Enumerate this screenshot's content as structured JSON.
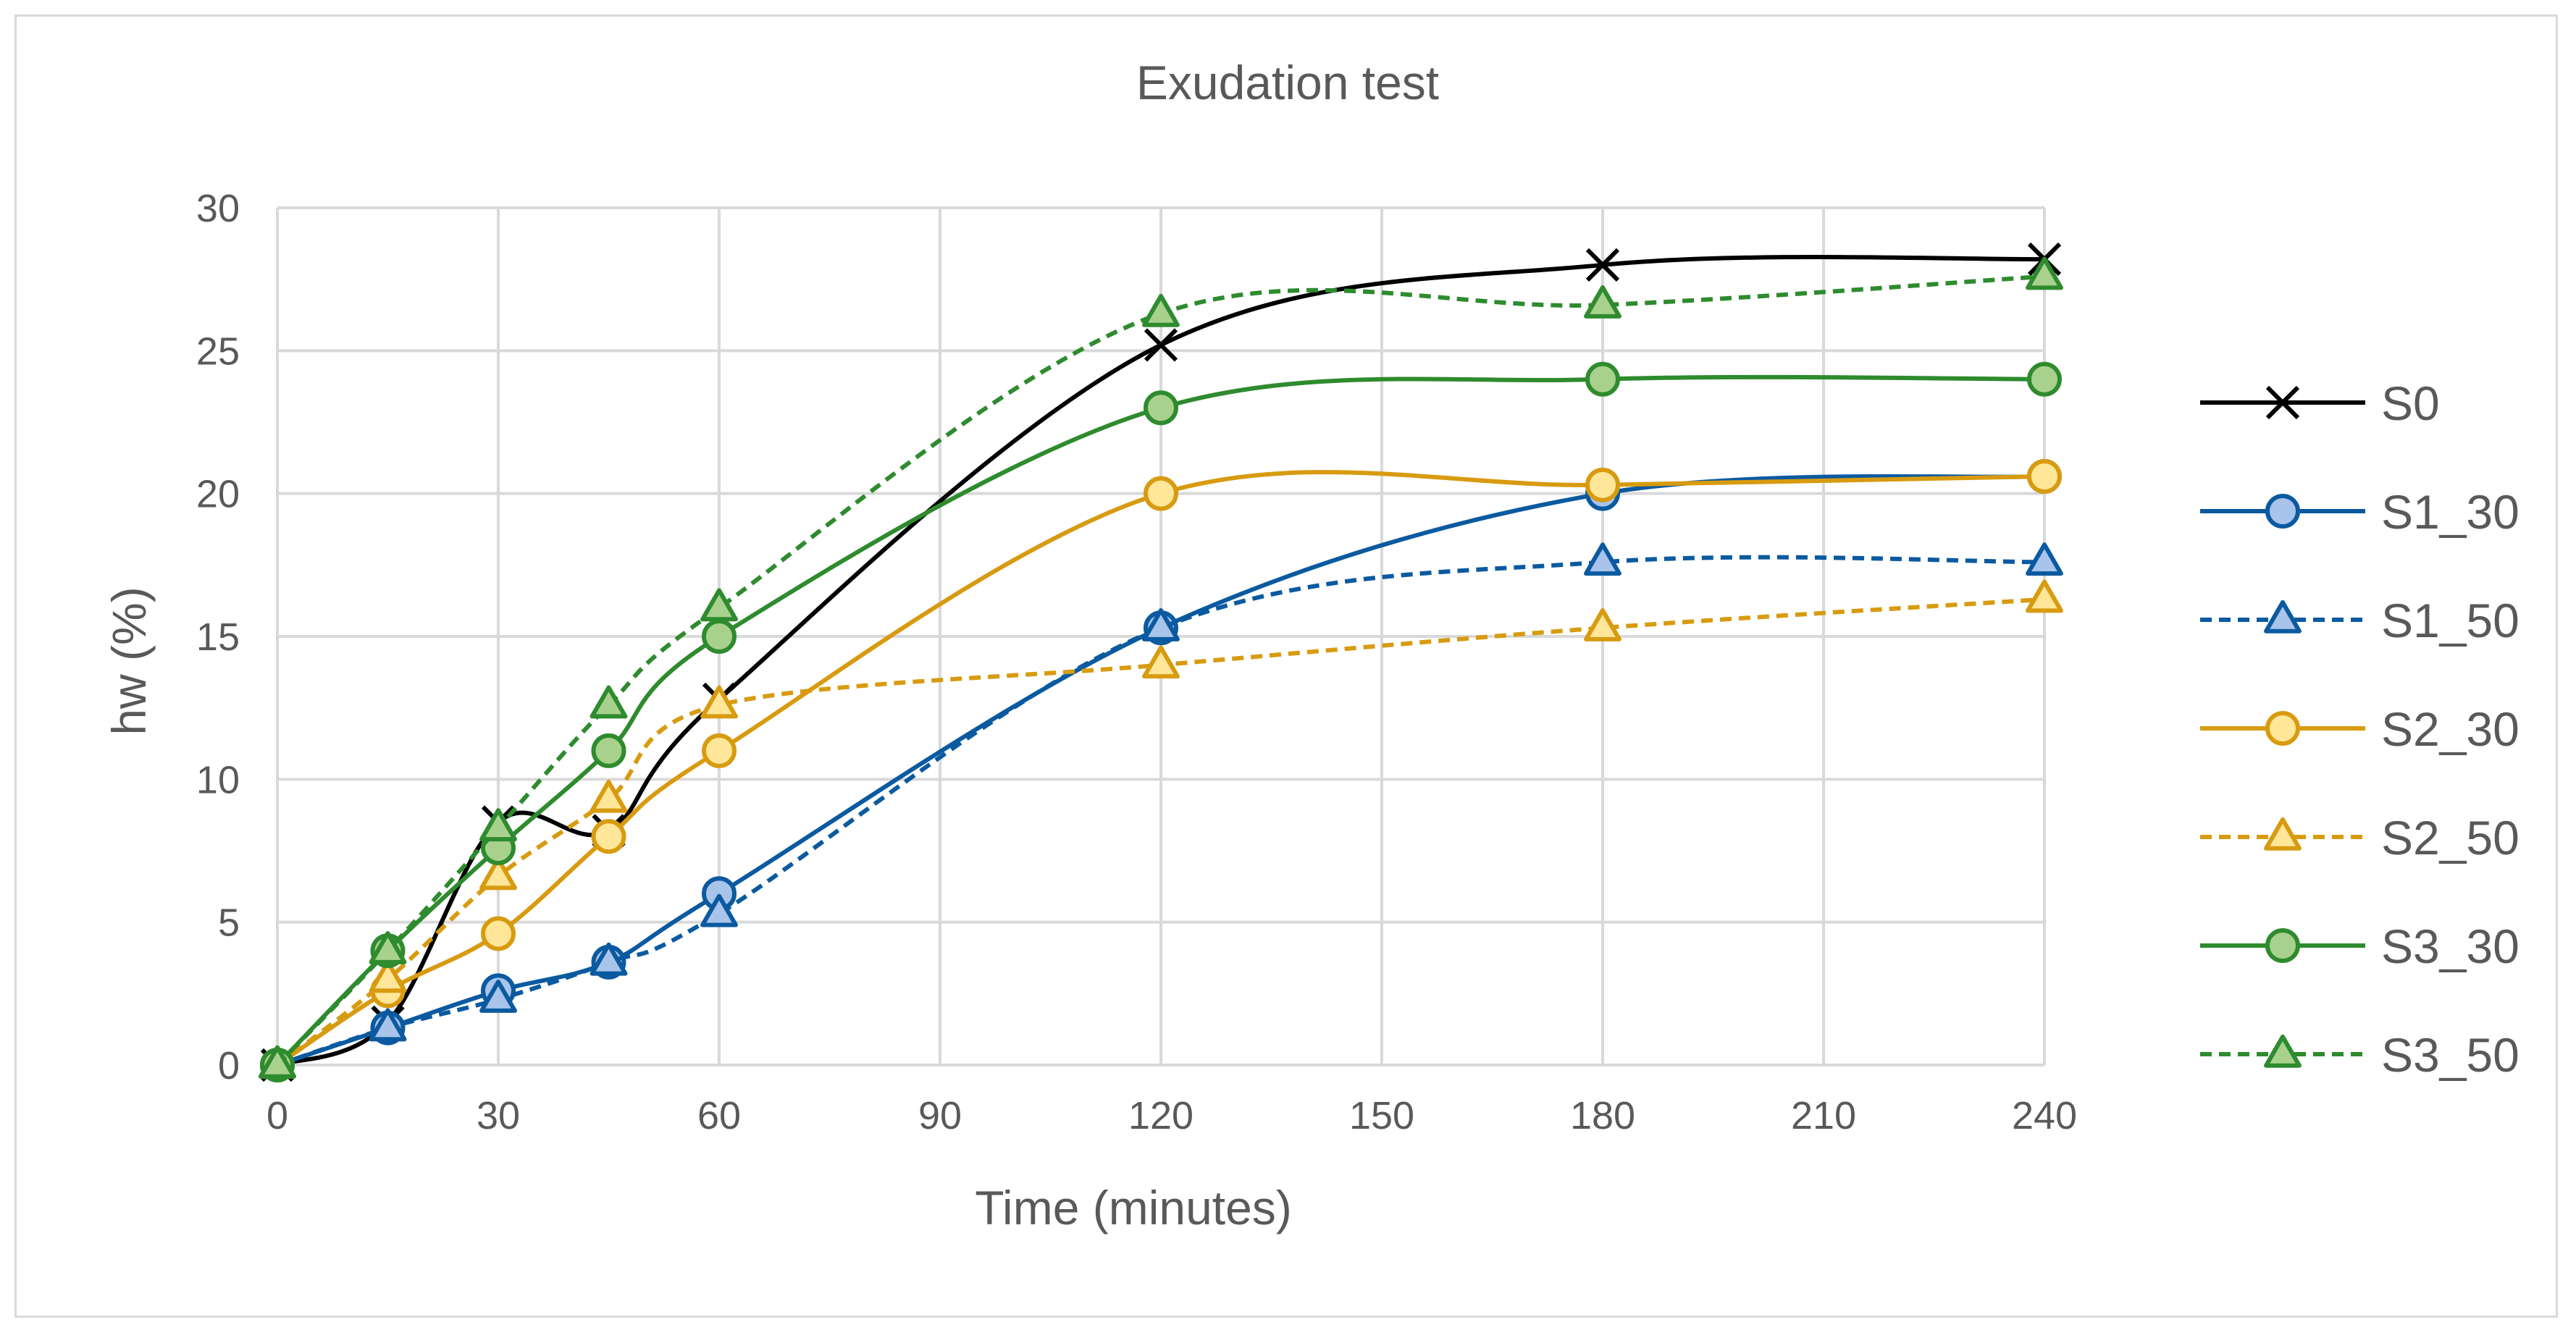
{
  "chart_data": {
    "type": "line",
    "title": "Exudation test",
    "xlabel": "Time (minutes)",
    "ylabel": "hw (%)",
    "xlim": [
      0,
      240
    ],
    "ylim": [
      0,
      30
    ],
    "xticks": [
      0,
      30,
      60,
      90,
      120,
      150,
      180,
      210,
      240
    ],
    "yticks": [
      0,
      5,
      10,
      15,
      20,
      25,
      30
    ],
    "grid": true,
    "legend_position": "right",
    "series": [
      {
        "name": "S0",
        "color": "#000000",
        "marker": "x",
        "dashed": false,
        "x": [
          0,
          15,
          30,
          45,
          60,
          120,
          180,
          240
        ],
        "values": [
          0,
          1.5,
          8.5,
          8.2,
          12.8,
          25.2,
          28.0,
          28.2
        ]
      },
      {
        "name": "S1_30",
        "color": "#0B5AA0",
        "fill": "#A9C4EB",
        "marker": "circle",
        "dashed": false,
        "x": [
          0,
          15,
          30,
          45,
          60,
          120,
          180,
          240
        ],
        "values": [
          0,
          1.3,
          2.6,
          3.6,
          6.0,
          15.3,
          20.0,
          20.6
        ]
      },
      {
        "name": "S1_50",
        "color": "#0B5AA0",
        "fill": "#A9C4EB",
        "marker": "triangle",
        "dashed": true,
        "x": [
          0,
          15,
          30,
          45,
          60,
          120,
          180,
          240
        ],
        "values": [
          0,
          1.3,
          2.3,
          3.6,
          5.3,
          15.3,
          17.6,
          17.6
        ]
      },
      {
        "name": "S2_30",
        "color": "#D89B10",
        "fill": "#FFE699",
        "marker": "circle",
        "dashed": false,
        "x": [
          0,
          15,
          30,
          45,
          60,
          120,
          180,
          240
        ],
        "values": [
          0,
          2.6,
          4.6,
          8.0,
          11.0,
          20.0,
          20.3,
          20.6
        ]
      },
      {
        "name": "S2_50",
        "color": "#D89B10",
        "fill": "#FFE699",
        "marker": "triangle",
        "dashed": true,
        "x": [
          0,
          15,
          30,
          45,
          60,
          120,
          180,
          240
        ],
        "values": [
          0,
          3.0,
          6.6,
          9.3,
          12.6,
          14.0,
          15.3,
          16.3
        ]
      },
      {
        "name": "S3_30",
        "color": "#2E8B2E",
        "fill": "#A9D18E",
        "marker": "circle",
        "dashed": false,
        "x": [
          0,
          15,
          30,
          45,
          60,
          120,
          180,
          240
        ],
        "values": [
          0,
          4.0,
          7.6,
          11.0,
          15.0,
          23.0,
          24.0,
          24.0
        ]
      },
      {
        "name": "S3_50",
        "color": "#2E8B2E",
        "fill": "#A9D18E",
        "marker": "triangle",
        "dashed": true,
        "x": [
          0,
          15,
          30,
          45,
          60,
          120,
          180,
          240
        ],
        "values": [
          0,
          4.0,
          8.3,
          12.6,
          16.0,
          26.3,
          26.6,
          27.6
        ]
      }
    ]
  }
}
